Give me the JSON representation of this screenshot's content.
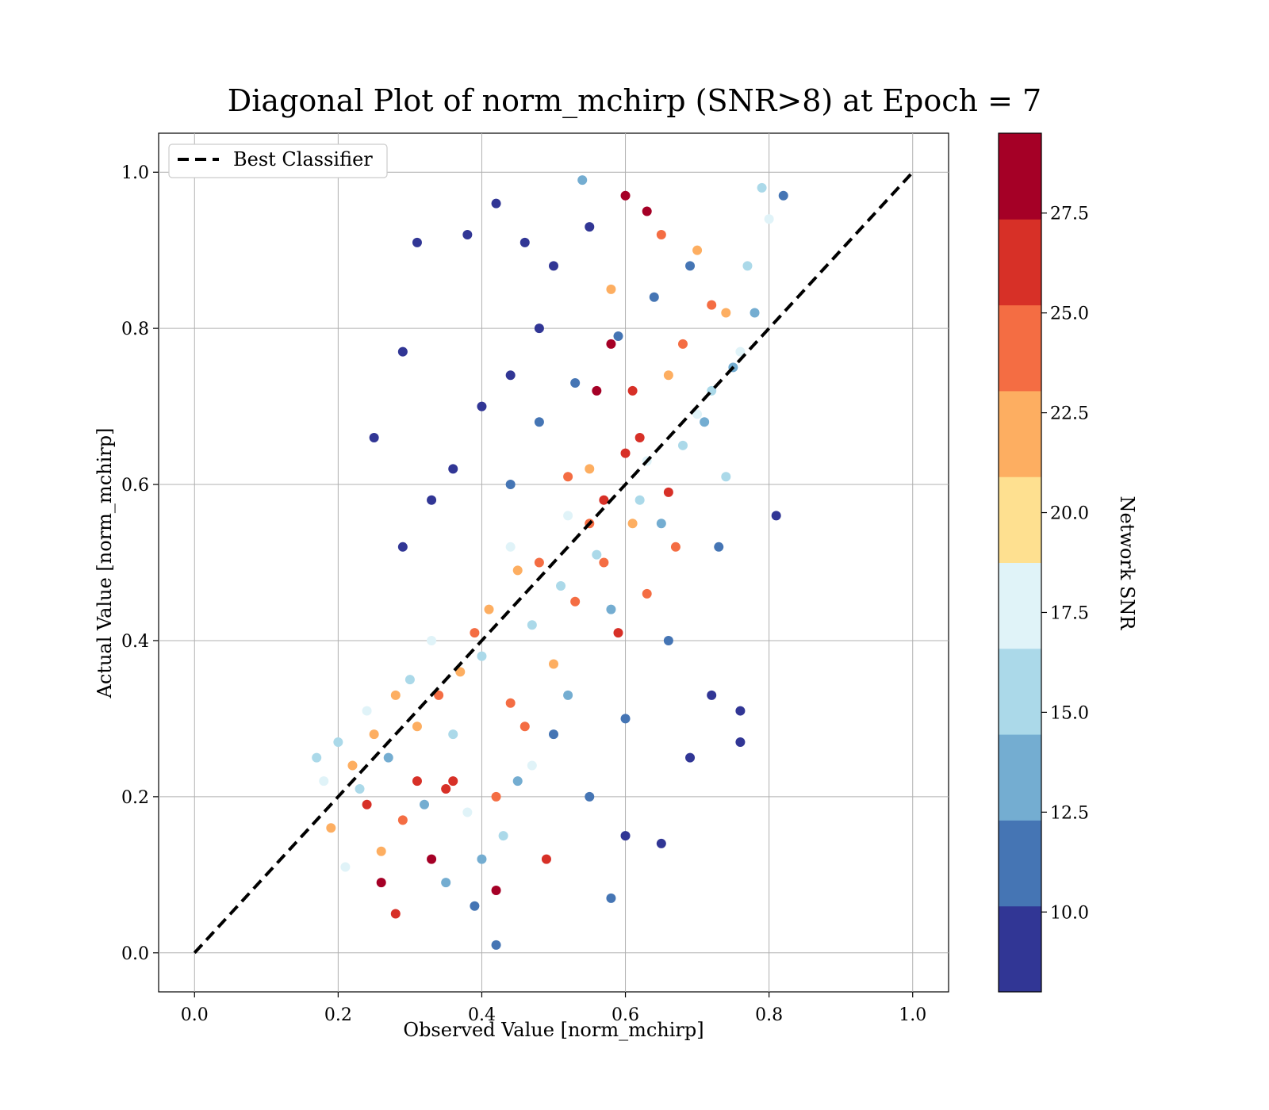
{
  "chart_data": {
    "type": "scatter",
    "title": "Diagonal Plot of norm_mchirp (SNR>8) at Epoch = 7",
    "xlabel": "Observed Value [norm_mchirp]",
    "ylabel": "Actual Value [norm_mchirp]",
    "xlim": [
      -0.05,
      1.05
    ],
    "ylim": [
      -0.05,
      1.05
    ],
    "x_ticks": [
      0.0,
      0.2,
      0.4,
      0.6,
      0.8,
      1.0
    ],
    "x_tick_labels": [
      "0.0",
      "0.2",
      "0.4",
      "0.6",
      "0.8",
      "1.0"
    ],
    "y_ticks": [
      0.0,
      0.2,
      0.4,
      0.6,
      0.8,
      1.0
    ],
    "y_tick_labels": [
      "0.0",
      "0.2",
      "0.4",
      "0.6",
      "0.8",
      "1.0"
    ],
    "grid": true,
    "legend": {
      "placement": "upper-left",
      "entries": [
        "Best Classifier"
      ]
    },
    "reference_line": {
      "name": "Best Classifier",
      "x": [
        0.0,
        1.0
      ],
      "y": [
        0.0,
        1.0
      ],
      "style": "dashed",
      "color": "#000000"
    },
    "colorbar": {
      "label": "Network SNR",
      "range": [
        8,
        29.5
      ],
      "ticks": [
        10.0,
        12.5,
        15.0,
        17.5,
        20.0,
        22.5,
        25.0,
        27.5
      ],
      "tick_labels": [
        "10.0",
        "12.5",
        "15.0",
        "17.5",
        "20.0",
        "22.5",
        "25.0",
        "27.5"
      ],
      "colors": [
        "#313695",
        "#4575b4",
        "#74add1",
        "#abd9e9",
        "#e0f3f8",
        "#fee090",
        "#fdae61",
        "#f46d43",
        "#d73027",
        "#a50026"
      ]
    },
    "series": [
      {
        "description_points": "representative sample of the dense scatter",
        "points": [
          {
            "x": 0.6,
            "y": 0.97,
            "snr": 28.5
          },
          {
            "x": 0.63,
            "y": 0.95,
            "snr": 28.5
          },
          {
            "x": 0.58,
            "y": 0.78,
            "snr": 28.5
          },
          {
            "x": 0.56,
            "y": 0.72,
            "snr": 28.5
          },
          {
            "x": 0.42,
            "y": 0.08,
            "snr": 28.5
          },
          {
            "x": 0.26,
            "y": 0.09,
            "snr": 28.5
          },
          {
            "x": 0.33,
            "y": 0.12,
            "snr": 28.5
          },
          {
            "x": 0.62,
            "y": 0.66,
            "snr": 26.0
          },
          {
            "x": 0.6,
            "y": 0.64,
            "snr": 26.0
          },
          {
            "x": 0.57,
            "y": 0.58,
            "snr": 26.0
          },
          {
            "x": 0.36,
            "y": 0.22,
            "snr": 26.0
          },
          {
            "x": 0.31,
            "y": 0.22,
            "snr": 26.0
          },
          {
            "x": 0.24,
            "y": 0.19,
            "snr": 26.0
          },
          {
            "x": 0.35,
            "y": 0.21,
            "snr": 26.0
          },
          {
            "x": 0.59,
            "y": 0.41,
            "snr": 26.0
          },
          {
            "x": 0.61,
            "y": 0.72,
            "snr": 26.0
          },
          {
            "x": 0.66,
            "y": 0.59,
            "snr": 26.0
          },
          {
            "x": 0.49,
            "y": 0.12,
            "snr": 26.0
          },
          {
            "x": 0.28,
            "y": 0.05,
            "snr": 26.0
          },
          {
            "x": 0.52,
            "y": 0.61,
            "snr": 23.5
          },
          {
            "x": 0.55,
            "y": 0.55,
            "snr": 23.5
          },
          {
            "x": 0.48,
            "y": 0.5,
            "snr": 23.5
          },
          {
            "x": 0.65,
            "y": 0.92,
            "snr": 23.5
          },
          {
            "x": 0.72,
            "y": 0.83,
            "snr": 23.5
          },
          {
            "x": 0.44,
            "y": 0.32,
            "snr": 23.5
          },
          {
            "x": 0.63,
            "y": 0.46,
            "snr": 23.5
          },
          {
            "x": 0.39,
            "y": 0.41,
            "snr": 23.5
          },
          {
            "x": 0.29,
            "y": 0.17,
            "snr": 23.5
          },
          {
            "x": 0.46,
            "y": 0.29,
            "snr": 23.5
          },
          {
            "x": 0.57,
            "y": 0.5,
            "snr": 23.5
          },
          {
            "x": 0.68,
            "y": 0.78,
            "snr": 23.5
          },
          {
            "x": 0.53,
            "y": 0.45,
            "snr": 23.5
          },
          {
            "x": 0.42,
            "y": 0.2,
            "snr": 23.5
          },
          {
            "x": 0.67,
            "y": 0.52,
            "snr": 23.5
          },
          {
            "x": 0.34,
            "y": 0.33,
            "snr": 23.5
          },
          {
            "x": 0.22,
            "y": 0.24,
            "snr": 21.0
          },
          {
            "x": 0.25,
            "y": 0.28,
            "snr": 21.0
          },
          {
            "x": 0.19,
            "y": 0.16,
            "snr": 21.0
          },
          {
            "x": 0.28,
            "y": 0.33,
            "snr": 21.0
          },
          {
            "x": 0.31,
            "y": 0.29,
            "snr": 21.0
          },
          {
            "x": 0.45,
            "y": 0.49,
            "snr": 21.0
          },
          {
            "x": 0.55,
            "y": 0.62,
            "snr": 21.0
          },
          {
            "x": 0.61,
            "y": 0.55,
            "snr": 21.0
          },
          {
            "x": 0.66,
            "y": 0.74,
            "snr": 21.0
          },
          {
            "x": 0.7,
            "y": 0.9,
            "snr": 21.0
          },
          {
            "x": 0.74,
            "y": 0.82,
            "snr": 21.0
          },
          {
            "x": 0.37,
            "y": 0.36,
            "snr": 21.0
          },
          {
            "x": 0.41,
            "y": 0.44,
            "snr": 21.0
          },
          {
            "x": 0.5,
            "y": 0.37,
            "snr": 21.0
          },
          {
            "x": 0.58,
            "y": 0.85,
            "snr": 21.0
          },
          {
            "x": 0.26,
            "y": 0.13,
            "snr": 21.0
          },
          {
            "x": 0.21,
            "y": 0.11,
            "snr": 18.5
          },
          {
            "x": 0.18,
            "y": 0.22,
            "snr": 18.5
          },
          {
            "x": 0.24,
            "y": 0.31,
            "snr": 18.5
          },
          {
            "x": 0.33,
            "y": 0.4,
            "snr": 18.5
          },
          {
            "x": 0.44,
            "y": 0.52,
            "snr": 18.5
          },
          {
            "x": 0.52,
            "y": 0.56,
            "snr": 18.5
          },
          {
            "x": 0.63,
            "y": 0.63,
            "snr": 18.5
          },
          {
            "x": 0.7,
            "y": 0.69,
            "snr": 18.5
          },
          {
            "x": 0.76,
            "y": 0.77,
            "snr": 18.5
          },
          {
            "x": 0.8,
            "y": 0.94,
            "snr": 18.5
          },
          {
            "x": 0.38,
            "y": 0.18,
            "snr": 18.5
          },
          {
            "x": 0.47,
            "y": 0.24,
            "snr": 18.5
          },
          {
            "x": 0.17,
            "y": 0.25,
            "snr": 16.0
          },
          {
            "x": 0.2,
            "y": 0.27,
            "snr": 16.0
          },
          {
            "x": 0.23,
            "y": 0.21,
            "snr": 16.0
          },
          {
            "x": 0.3,
            "y": 0.35,
            "snr": 16.0
          },
          {
            "x": 0.36,
            "y": 0.28,
            "snr": 16.0
          },
          {
            "x": 0.4,
            "y": 0.38,
            "snr": 16.0
          },
          {
            "x": 0.47,
            "y": 0.42,
            "snr": 16.0
          },
          {
            "x": 0.51,
            "y": 0.47,
            "snr": 16.0
          },
          {
            "x": 0.56,
            "y": 0.51,
            "snr": 16.0
          },
          {
            "x": 0.62,
            "y": 0.58,
            "snr": 16.0
          },
          {
            "x": 0.68,
            "y": 0.65,
            "snr": 16.0
          },
          {
            "x": 0.72,
            "y": 0.72,
            "snr": 16.0
          },
          {
            "x": 0.77,
            "y": 0.88,
            "snr": 16.0
          },
          {
            "x": 0.79,
            "y": 0.98,
            "snr": 16.0
          },
          {
            "x": 0.74,
            "y": 0.61,
            "snr": 16.0
          },
          {
            "x": 0.43,
            "y": 0.15,
            "snr": 16.0
          },
          {
            "x": 0.35,
            "y": 0.09,
            "snr": 13.5
          },
          {
            "x": 0.4,
            "y": 0.12,
            "snr": 13.5
          },
          {
            "x": 0.45,
            "y": 0.22,
            "snr": 13.5
          },
          {
            "x": 0.52,
            "y": 0.33,
            "snr": 13.5
          },
          {
            "x": 0.58,
            "y": 0.44,
            "snr": 13.5
          },
          {
            "x": 0.65,
            "y": 0.55,
            "snr": 13.5
          },
          {
            "x": 0.71,
            "y": 0.68,
            "snr": 13.5
          },
          {
            "x": 0.75,
            "y": 0.75,
            "snr": 13.5
          },
          {
            "x": 0.78,
            "y": 0.82,
            "snr": 13.5
          },
          {
            "x": 0.54,
            "y": 0.99,
            "snr": 13.5
          },
          {
            "x": 0.32,
            "y": 0.19,
            "snr": 13.5
          },
          {
            "x": 0.27,
            "y": 0.25,
            "snr": 13.5
          },
          {
            "x": 0.44,
            "y": 0.6,
            "snr": 11.0
          },
          {
            "x": 0.48,
            "y": 0.68,
            "snr": 11.0
          },
          {
            "x": 0.53,
            "y": 0.73,
            "snr": 11.0
          },
          {
            "x": 0.59,
            "y": 0.79,
            "snr": 11.0
          },
          {
            "x": 0.64,
            "y": 0.84,
            "snr": 11.0
          },
          {
            "x": 0.69,
            "y": 0.88,
            "snr": 11.0
          },
          {
            "x": 0.5,
            "y": 0.28,
            "snr": 11.0
          },
          {
            "x": 0.55,
            "y": 0.2,
            "snr": 11.0
          },
          {
            "x": 0.6,
            "y": 0.3,
            "snr": 11.0
          },
          {
            "x": 0.66,
            "y": 0.4,
            "snr": 11.0
          },
          {
            "x": 0.39,
            "y": 0.06,
            "snr": 11.0
          },
          {
            "x": 0.73,
            "y": 0.52,
            "snr": 11.0
          },
          {
            "x": 0.42,
            "y": 0.96,
            "snr": 9.0
          },
          {
            "x": 0.46,
            "y": 0.91,
            "snr": 9.0
          },
          {
            "x": 0.5,
            "y": 0.88,
            "snr": 9.0
          },
          {
            "x": 0.55,
            "y": 0.93,
            "snr": 9.0
          },
          {
            "x": 0.48,
            "y": 0.8,
            "snr": 9.0
          },
          {
            "x": 0.44,
            "y": 0.74,
            "snr": 9.0
          },
          {
            "x": 0.4,
            "y": 0.7,
            "snr": 9.0
          },
          {
            "x": 0.36,
            "y": 0.62,
            "snr": 9.0
          },
          {
            "x": 0.33,
            "y": 0.58,
            "snr": 9.0
          },
          {
            "x": 0.29,
            "y": 0.52,
            "snr": 9.0
          },
          {
            "x": 0.31,
            "y": 0.91,
            "snr": 9.0
          },
          {
            "x": 0.25,
            "y": 0.66,
            "snr": 9.0
          },
          {
            "x": 0.29,
            "y": 0.77,
            "snr": 9.0
          },
          {
            "x": 0.38,
            "y": 0.92,
            "snr": 9.0
          },
          {
            "x": 0.6,
            "y": 0.15,
            "snr": 9.0
          },
          {
            "x": 0.65,
            "y": 0.14,
            "snr": 9.0
          },
          {
            "x": 0.69,
            "y": 0.25,
            "snr": 9.0
          },
          {
            "x": 0.72,
            "y": 0.33,
            "snr": 9.0
          },
          {
            "x": 0.76,
            "y": 0.31,
            "snr": 9.0
          },
          {
            "x": 0.76,
            "y": 0.27,
            "snr": 9.0
          },
          {
            "x": 0.81,
            "y": 0.56,
            "snr": 9.0
          },
          {
            "x": 0.82,
            "y": 0.97,
            "snr": 11.0
          },
          {
            "x": 0.42,
            "y": 0.01,
            "snr": 11.0
          },
          {
            "x": 0.58,
            "y": 0.07,
            "snr": 11.0
          }
        ]
      }
    ]
  }
}
